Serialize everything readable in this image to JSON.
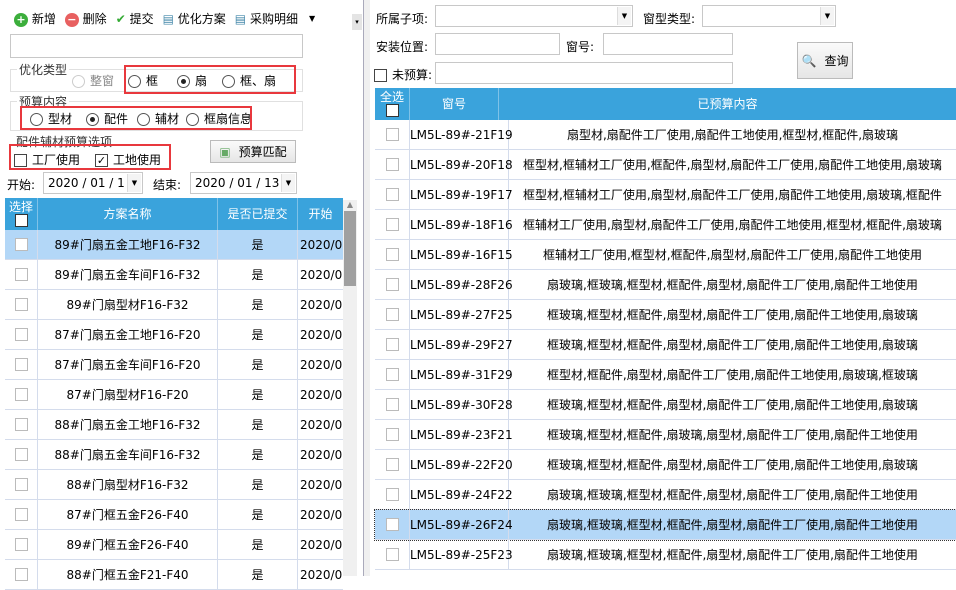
{
  "toolbar": {
    "add": "新增",
    "delete": "删除",
    "submit": "提交",
    "optimize_plan": "优化方案",
    "purchase_detail": "采购明细"
  },
  "opt_type": {
    "title": "优化类型",
    "options": [
      "整窗",
      "框",
      "扇",
      "框、扇"
    ],
    "selected": "扇"
  },
  "budget_content": {
    "title": "预算内容",
    "options": [
      "型材",
      "配件",
      "辅材",
      "框扇信息"
    ],
    "selected": "配件"
  },
  "accessory_options": {
    "title": "配件辅材预算选项",
    "factory": "工厂使用",
    "factory_checked": false,
    "site": "工地使用",
    "site_checked": true
  },
  "budget_match": "预算匹配",
  "date": {
    "start_label": "开始:",
    "start": "2020 / 01 / 1",
    "end_label": "结束:",
    "end": "2020 / 01 / 13"
  },
  "left_table": {
    "headers": [
      "选择",
      "方案名称",
      "是否已提交",
      "开始"
    ],
    "selected_index": 0,
    "rows": [
      [
        "89#门扇五金工地F16-F32",
        "是",
        "2020/0"
      ],
      [
        "89#门扇五金车间F16-F32",
        "是",
        "2020/0"
      ],
      [
        "89#门扇型材F16-F32",
        "是",
        "2020/0"
      ],
      [
        "87#门扇五金工地F16-F20",
        "是",
        "2020/0"
      ],
      [
        "87#门扇五金车间F16-F20",
        "是",
        "2020/0"
      ],
      [
        "87#门扇型材F16-F20",
        "是",
        "2020/0"
      ],
      [
        "88#门扇五金工地F16-F32",
        "是",
        "2020/0"
      ],
      [
        "88#门扇五金车间F16-F32",
        "是",
        "2020/0"
      ],
      [
        "88#门扇型材F16-F32",
        "是",
        "2020/0"
      ],
      [
        "87#门框五金F26-F40",
        "是",
        "2020/0"
      ],
      [
        "89#门框五金F26-F40",
        "是",
        "2020/0"
      ],
      [
        "88#门框五金F21-F40",
        "是",
        "2020/0"
      ]
    ]
  },
  "filters": {
    "subitem_label": "所属子项:",
    "window_type_label": "窗型类型:",
    "location_label": "安装位置:",
    "window_no_label": "窗号:",
    "unbudgeted_label": "未预算:",
    "query": "查询"
  },
  "right_table": {
    "headers": [
      "全选",
      "窗号",
      "已预算内容"
    ],
    "selected_index": 13,
    "rows": [
      [
        "LM5L-89#-21F19",
        "扇型材,扇配件工厂使用,扇配件工地使用,框型材,框配件,扇玻璃"
      ],
      [
        "LM5L-89#-20F18",
        "框型材,框辅材工厂使用,框配件,扇型材,扇配件工厂使用,扇配件工地使用,扇玻璃"
      ],
      [
        "LM5L-89#-19F17",
        "框型材,框辅材工厂使用,扇型材,扇配件工厂使用,扇配件工地使用,扇玻璃,框配件"
      ],
      [
        "LM5L-89#-18F16",
        "框辅材工厂使用,扇型材,扇配件工厂使用,扇配件工地使用,框型材,框配件,扇玻璃"
      ],
      [
        "LM5L-89#-16F15",
        "框辅材工厂使用,框型材,框配件,扇型材,扇配件工厂使用,扇配件工地使用"
      ],
      [
        "LM5L-89#-28F26",
        "扇玻璃,框玻璃,框型材,框配件,扇型材,扇配件工厂使用,扇配件工地使用"
      ],
      [
        "LM5L-89#-27F25",
        "框玻璃,框型材,框配件,扇型材,扇配件工厂使用,扇配件工地使用,扇玻璃"
      ],
      [
        "LM5L-89#-29F27",
        "框玻璃,框型材,框配件,扇型材,扇配件工厂使用,扇配件工地使用,扇玻璃"
      ],
      [
        "LM5L-89#-31F29",
        "框型材,框配件,扇型材,扇配件工厂使用,扇配件工地使用,扇玻璃,框玻璃"
      ],
      [
        "LM5L-89#-30F28",
        "框玻璃,框型材,框配件,扇型材,扇配件工厂使用,扇配件工地使用,扇玻璃"
      ],
      [
        "LM5L-89#-23F21",
        "框玻璃,框型材,框配件,扇玻璃,扇型材,扇配件工厂使用,扇配件工地使用"
      ],
      [
        "LM5L-89#-22F20",
        "框玻璃,框型材,框配件,扇型材,扇配件工厂使用,扇配件工地使用,扇玻璃"
      ],
      [
        "LM5L-89#-24F22",
        "扇玻璃,框玻璃,框型材,框配件,扇型材,扇配件工厂使用,扇配件工地使用"
      ],
      [
        "LM5L-89#-26F24",
        "扇玻璃,框玻璃,框型材,框配件,扇型材,扇配件工厂使用,扇配件工地使用"
      ],
      [
        "LM5L-89#-25F23",
        "扇玻璃,框玻璃,框型材,框配件,扇型材,扇配件工厂使用,扇配件工地使用"
      ]
    ]
  },
  "colors": {
    "header": "#3aa3dc",
    "selected_row": "#b3d7f7",
    "highlight": "#e8383d"
  }
}
